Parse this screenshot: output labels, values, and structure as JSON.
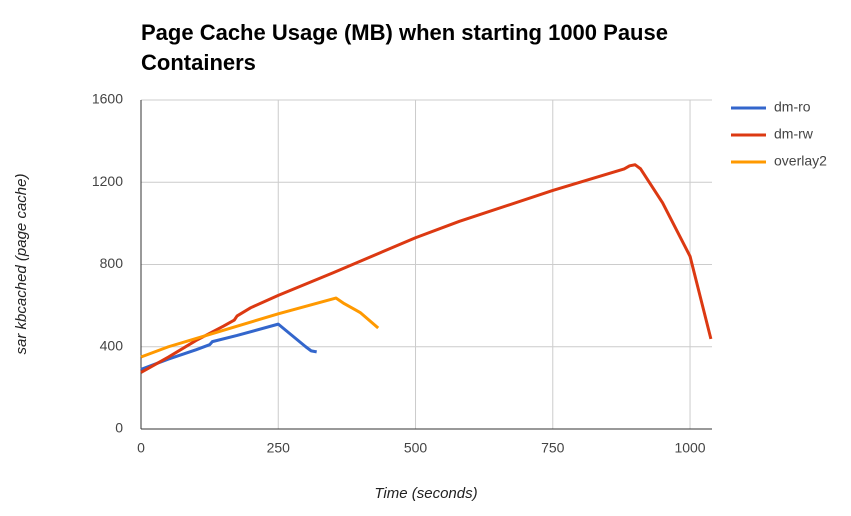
{
  "chart_data": {
    "type": "line",
    "title": "Page Cache Usage (MB) when starting 1000 Pause Containers",
    "x_label": "Time (seconds)",
    "y_label": "sar kbcached (page cache)",
    "xlim": [
      0,
      1040
    ],
    "xticks": [
      0,
      250,
      500,
      750,
      1000
    ],
    "ylim": [
      0,
      1600
    ],
    "yticks": [
      0,
      400,
      800,
      1200,
      1600
    ],
    "grid": true,
    "legend": "right",
    "series": [
      {
        "name": "dm-ro",
        "color": "#3366cc",
        "x": [
          0,
          50,
          100,
          125,
          130,
          175,
          250,
          300,
          310,
          320
        ],
        "values": [
          290,
          340,
          385,
          410,
          425,
          455,
          510,
          400,
          380,
          375
        ]
      },
      {
        "name": "dm-rw",
        "color": "#dc3912",
        "x": [
          0,
          50,
          100,
          150,
          170,
          175,
          200,
          250,
          350,
          500,
          580,
          750,
          880,
          890,
          900,
          910,
          950,
          1000,
          1038
        ],
        "values": [
          275,
          350,
          430,
          500,
          530,
          550,
          590,
          650,
          760,
          930,
          1010,
          1160,
          1265,
          1280,
          1285,
          1265,
          1100,
          840,
          438
        ]
      },
      {
        "name": "overlay2",
        "color": "#ff9900",
        "x": [
          0,
          50,
          100,
          150,
          250,
          355,
          370,
          390,
          400,
          432
        ],
        "values": [
          350,
          400,
          440,
          480,
          560,
          637,
          610,
          580,
          565,
          491
        ]
      }
    ]
  }
}
